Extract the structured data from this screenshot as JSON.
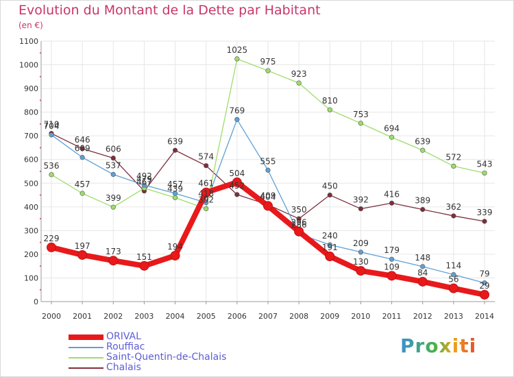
{
  "title": "Evolution du Montant de la Dette par Habitant",
  "unit_label": "(en €)",
  "brand": "Proxiti",
  "chart_data": {
    "type": "line",
    "title": "Evolution du Montant de la Dette par Habitant",
    "ylabel": "(en €)",
    "xlabel": "",
    "ylim": [
      0,
      1100
    ],
    "yticks": [
      0,
      100,
      200,
      300,
      400,
      500,
      600,
      700,
      800,
      900,
      1000,
      1100
    ],
    "x": [
      "2000",
      "2001",
      "2002",
      "2003",
      "2004",
      "2005",
      "2006",
      "2007",
      "2008",
      "2009",
      "2010",
      "2011",
      "2012",
      "2013",
      "2014"
    ],
    "grid": true,
    "legend_position": "bottom-left",
    "series": [
      {
        "name": "ORIVAL",
        "color": "#e8191b",
        "values": [
          229,
          197,
          173,
          151,
          194,
          461,
          504,
          404,
          296,
          191,
          130,
          109,
          84,
          56,
          29
        ]
      },
      {
        "name": "Rouffiac",
        "color": "#5fa0d4",
        "values": [
          704,
          609,
          537,
          492,
          457,
          418,
          769,
          555,
          286,
          240,
          209,
          179,
          148,
          114,
          79
        ]
      },
      {
        "name": "Saint-Quentin-de-Chalais",
        "color": "#9ddd6a",
        "values": [
          536,
          457,
          399,
          479,
          439,
          392,
          1025,
          975,
          923,
          810,
          753,
          694,
          639,
          572,
          543
        ]
      },
      {
        "name": "Chalais",
        "color": "#7d2e3a",
        "values": [
          710,
          646,
          606,
          467,
          639,
          574,
          452,
          409,
          350,
          450,
          392,
          416,
          389,
          362,
          339
        ]
      }
    ]
  }
}
